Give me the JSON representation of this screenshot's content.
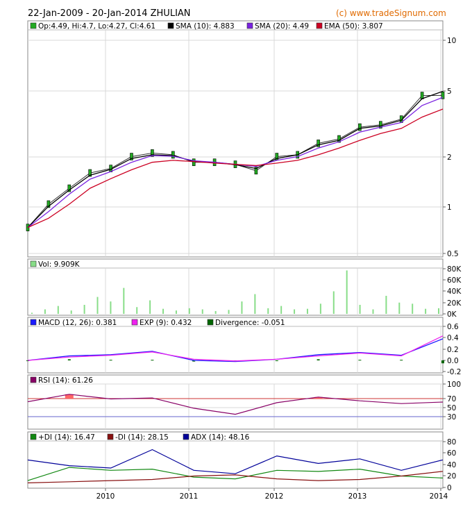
{
  "header": {
    "title": "22-Jan-2009 - 20-Jan-2014 ZHULIAN",
    "credit": "(c) www.tradeSignum.com"
  },
  "colors": {
    "price_candle": "#22aa22",
    "sma10": "#000000",
    "sma20": "#7a22e0",
    "ema50": "#cc0022",
    "volume": "#88dd88",
    "macd": "#1a1aff",
    "exp": "#ee22ee",
    "divergence": "#006600",
    "rsi": "#880066",
    "rsi_fill": "#ff6666",
    "pdi": "#118811",
    "mdi": "#881111",
    "adx": "#000099"
  },
  "x_axis": {
    "ticks": [
      "2010",
      "2011",
      "2012",
      "2013",
      "2014"
    ]
  },
  "chart_data": [
    {
      "type": "line",
      "panel": "price",
      "legend": [
        "Op:4.49, Hi:4.7, Lo:4.27, Cl:4.61",
        "SMA (10): 4.883",
        "SMA (20): 4.49",
        "EMA (50): 3.807"
      ],
      "y_scale": "log",
      "y_ticks": [
        "10",
        "5",
        "2",
        "1",
        "0.5"
      ],
      "x": [
        "2009-01",
        "2009-04",
        "2009-07",
        "2009-10",
        "2010-01",
        "2010-04",
        "2010-07",
        "2010-10",
        "2011-01",
        "2011-04",
        "2011-07",
        "2011-10",
        "2012-01",
        "2012-04",
        "2012-07",
        "2012-10",
        "2013-01",
        "2013-04",
        "2013-07",
        "2013-10",
        "2014-01"
      ],
      "series": [
        {
          "name": "Close",
          "values": [
            0.72,
            1.0,
            1.25,
            1.55,
            1.65,
            1.95,
            2.05,
            2.0,
            1.8,
            1.8,
            1.75,
            1.6,
            1.95,
            2.0,
            2.35,
            2.5,
            2.95,
            3.05,
            3.3,
            4.6,
            4.61
          ]
        },
        {
          "name": "SMA (10)",
          "values": [
            0.72,
            0.97,
            1.22,
            1.5,
            1.63,
            1.9,
            2.0,
            1.98,
            1.82,
            1.8,
            1.74,
            1.65,
            1.9,
            2.0,
            2.3,
            2.45,
            2.9,
            3.0,
            3.25,
            4.4,
            4.883
          ]
        },
        {
          "name": "SMA (20)",
          "values": [
            0.72,
            0.9,
            1.15,
            1.42,
            1.58,
            1.8,
            1.98,
            1.96,
            1.84,
            1.8,
            1.75,
            1.7,
            1.85,
            1.95,
            2.2,
            2.4,
            2.75,
            2.95,
            3.15,
            4.0,
            4.49
          ]
        },
        {
          "name": "EMA (50)",
          "values": [
            0.72,
            0.82,
            1.0,
            1.25,
            1.43,
            1.62,
            1.8,
            1.85,
            1.82,
            1.78,
            1.75,
            1.72,
            1.78,
            1.85,
            2.0,
            2.2,
            2.45,
            2.7,
            2.9,
            3.4,
            3.807
          ]
        }
      ]
    },
    {
      "type": "bar",
      "panel": "volume",
      "legend": [
        "Vol: 9.909K"
      ],
      "y_ticks": [
        "80K",
        "60K",
        "40K",
        "20K",
        "0K"
      ],
      "ylim": [
        0,
        85000
      ],
      "series": [
        {
          "name": "Vol",
          "values": [
            2000,
            8000,
            14000,
            6000,
            16000,
            30000,
            22000,
            46000,
            12000,
            24000,
            9000,
            6000,
            10000,
            8000,
            5000,
            7000,
            22000,
            35000,
            10000,
            14000,
            8000,
            9000,
            18000,
            40000,
            77000,
            16000,
            8000,
            32000,
            20000,
            18000,
            9000,
            10000
          ]
        }
      ]
    },
    {
      "type": "line",
      "panel": "macd",
      "legend": [
        "MACD (12, 26): 0.381",
        "EXP (9): 0.432",
        "Divergence: -0.051"
      ],
      "y_ticks": [
        "0.6",
        "0.4",
        "0.2",
        "0.0",
        "-0.2"
      ],
      "ylim": [
        -0.25,
        0.65
      ],
      "x": [
        "2009-01",
        "2009-07",
        "2010-01",
        "2010-07",
        "2011-01",
        "2011-07",
        "2012-01",
        "2012-07",
        "2013-01",
        "2013-07",
        "2014-01"
      ],
      "series": [
        {
          "name": "MACD (12, 26)",
          "values": [
            0.0,
            0.08,
            0.1,
            0.16,
            0.0,
            -0.02,
            0.02,
            0.1,
            0.14,
            0.09,
            0.381
          ]
        },
        {
          "name": "EXP (9)",
          "values": [
            0.0,
            0.06,
            0.09,
            0.15,
            0.02,
            -0.01,
            0.02,
            0.08,
            0.13,
            0.08,
            0.432
          ]
        },
        {
          "name": "Divergence",
          "values": [
            0.0,
            0.02,
            0.01,
            0.01,
            -0.02,
            -0.01,
            0.0,
            0.02,
            0.01,
            0.01,
            -0.051
          ]
        }
      ]
    },
    {
      "type": "line",
      "panel": "rsi",
      "legend": [
        "RSI (14): 61.26"
      ],
      "y_ticks": [
        "100",
        "70",
        "50",
        "30"
      ],
      "ylim": [
        0,
        100
      ],
      "x": [
        "2009-03",
        "2009-07",
        "2010-01",
        "2010-07",
        "2011-01",
        "2011-07",
        "2012-01",
        "2012-07",
        "2013-01",
        "2013-07",
        "2014-01"
      ],
      "series": [
        {
          "name": "RSI (14)",
          "values": [
            62,
            78,
            68,
            70,
            48,
            35,
            60,
            72,
            64,
            58,
            61.26
          ]
        }
      ]
    },
    {
      "type": "line",
      "panel": "dmi",
      "legend": [
        "+DI (14): 16.47",
        "-DI (14): 28.15",
        "ADX (14): 48.16"
      ],
      "y_ticks": [
        "80",
        "60",
        "40",
        "20",
        "0"
      ],
      "ylim": [
        0,
        80
      ],
      "x": [
        "2009-01",
        "2009-07",
        "2010-01",
        "2010-07",
        "2011-01",
        "2011-07",
        "2012-01",
        "2012-07",
        "2013-01",
        "2013-07",
        "2014-01"
      ],
      "series": [
        {
          "name": "+DI (14)",
          "values": [
            12,
            35,
            30,
            32,
            18,
            15,
            30,
            28,
            32,
            20,
            16.47
          ]
        },
        {
          "name": "-DI (14)",
          "values": [
            8,
            10,
            12,
            14,
            20,
            22,
            15,
            12,
            14,
            20,
            28.15
          ]
        },
        {
          "name": "ADX (14)",
          "values": [
            48,
            38,
            34,
            66,
            30,
            24,
            55,
            42,
            50,
            30,
            48.16
          ]
        }
      ]
    }
  ]
}
